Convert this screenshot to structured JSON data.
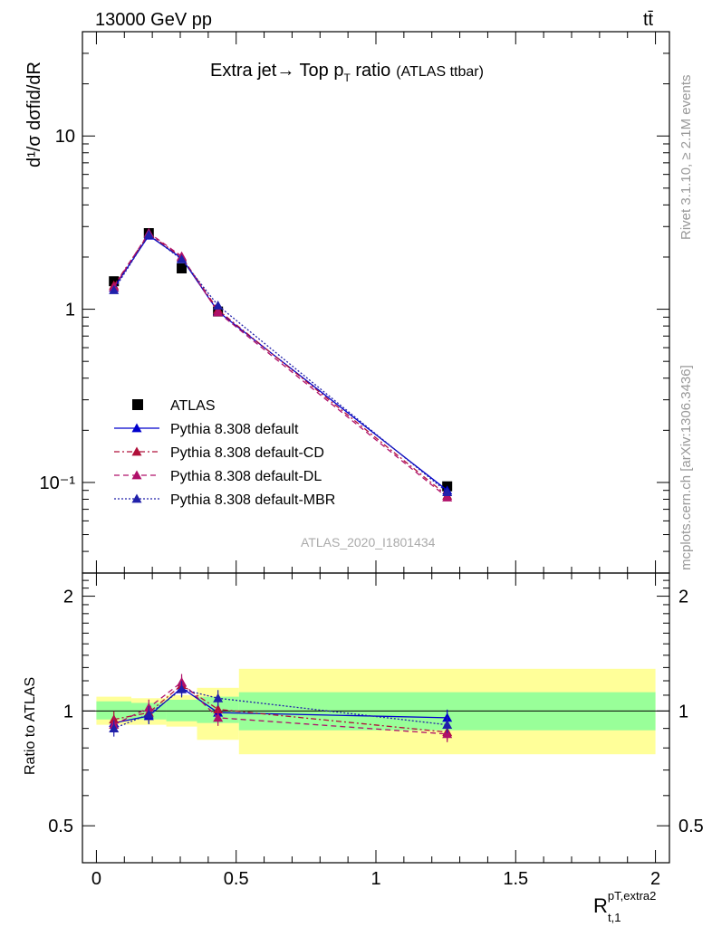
{
  "header": {
    "energy_label": "13000 GeV pp",
    "process_label": "tt̄",
    "watermark": "ATLAS_2020_I1801434",
    "side_rivet": "Rivet 3.1.10, ≥ 2.1M events",
    "side_mcplots": "mcplots.cern.ch [arXiv:1306.3436]"
  },
  "main_plot": {
    "title": "Extra jet→ Top p",
    "title_sub": "T",
    "title_rest": " ratio",
    "title_note": "(ATLAS ttbar)",
    "ylabel": "d¹/σ dσfid/dR",
    "y_ticks": [
      "10⁻¹",
      "1",
      "10"
    ]
  },
  "ratio_plot": {
    "ylabel": "Ratio to ATLAS",
    "y_ticks": [
      "0.5",
      "1",
      "2"
    ],
    "x_ticks": [
      "0",
      "0.5",
      "1",
      "1.5",
      "2"
    ],
    "xlabel": "R",
    "xlabel_sup": "pT,extra2",
    "xlabel_sub": "t,1"
  },
  "colors": {
    "data": "#000000",
    "default": "#0000cc",
    "cd": "#b0103a",
    "dl": "#b0106a",
    "mbr": "#2020aa",
    "band_inner": "#99ff99",
    "band_outer": "#ffff99"
  },
  "chart_data": {
    "type": "line",
    "log_y": true,
    "xlim": [
      -0.05,
      2.05
    ],
    "ylim": [
      0.03,
      40
    ],
    "ratio_ylim": [
      0.4,
      2.3
    ],
    "bin_edges": [
      0.0,
      0.125,
      0.25,
      0.36,
      0.51,
      2.0
    ],
    "x": [
      0.0625,
      0.1875,
      0.305,
      0.435,
      1.255
    ],
    "series": [
      {
        "name": "ATLAS",
        "style": "data",
        "values": [
          1.45,
          2.75,
          1.72,
          0.97,
          0.095
        ],
        "ratio": [
          1.0,
          1.0,
          1.0,
          1.0,
          1.0
        ]
      },
      {
        "name": "Pythia 8.308 default",
        "style": "default",
        "values": [
          1.33,
          2.66,
          1.97,
          0.97,
          0.09
        ],
        "ratio": [
          0.93,
          0.97,
          1.15,
          0.99,
          0.96
        ]
      },
      {
        "name": "Pythia 8.308 default-CD",
        "style": "cd",
        "values": [
          1.37,
          2.72,
          2.0,
          0.99,
          0.084
        ],
        "ratio": [
          0.95,
          0.99,
          1.17,
          1.01,
          0.88
        ]
      },
      {
        "name": "Pythia 8.308 default-DL",
        "style": "dl",
        "values": [
          1.34,
          2.76,
          2.02,
          0.96,
          0.082
        ],
        "ratio": [
          0.92,
          1.02,
          1.19,
          0.96,
          0.87
        ]
      },
      {
        "name": "Pythia 8.308 default-MBR",
        "style": "mbr",
        "values": [
          1.29,
          2.69,
          1.94,
          1.05,
          0.088
        ],
        "ratio": [
          0.9,
          0.98,
          1.14,
          1.08,
          0.92
        ]
      }
    ],
    "ratio_band_inner": [
      [
        0.95,
        1.06
      ],
      [
        0.95,
        1.05
      ],
      [
        0.94,
        1.07
      ],
      [
        0.93,
        1.09
      ],
      [
        0.89,
        1.12
      ]
    ],
    "ratio_band_outer": [
      [
        0.92,
        1.09
      ],
      [
        0.92,
        1.08
      ],
      [
        0.91,
        1.1
      ],
      [
        0.84,
        1.15
      ],
      [
        0.77,
        1.29
      ]
    ]
  }
}
